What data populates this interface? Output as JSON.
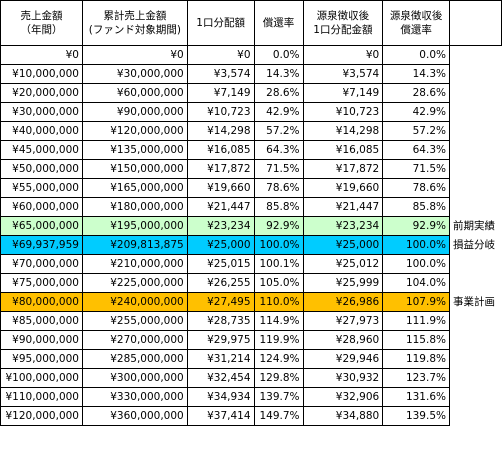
{
  "headers": [
    "売上金額\n（年間）",
    "累計売上金額\n(ファンド対象期間)",
    "1口分配額",
    "償還率",
    "源泉徴収後\n1口分配金額",
    "源泉徴収後\n償還率"
  ],
  "rows": [
    {
      "cells": [
        "¥0",
        "¥0",
        "¥0",
        "0.0%",
        "¥0",
        "0.0%"
      ],
      "note": "",
      "hl": ""
    },
    {
      "cells": [
        "¥10,000,000",
        "¥30,000,000",
        "¥3,574",
        "14.3%",
        "¥3,574",
        "14.3%"
      ],
      "note": "",
      "hl": ""
    },
    {
      "cells": [
        "¥20,000,000",
        "¥60,000,000",
        "¥7,149",
        "28.6%",
        "¥7,149",
        "28.6%"
      ],
      "note": "",
      "hl": ""
    },
    {
      "cells": [
        "¥30,000,000",
        "¥90,000,000",
        "¥10,723",
        "42.9%",
        "¥10,723",
        "42.9%"
      ],
      "note": "",
      "hl": ""
    },
    {
      "cells": [
        "¥40,000,000",
        "¥120,000,000",
        "¥14,298",
        "57.2%",
        "¥14,298",
        "57.2%"
      ],
      "note": "",
      "hl": ""
    },
    {
      "cells": [
        "¥45,000,000",
        "¥135,000,000",
        "¥16,085",
        "64.3%",
        "¥16,085",
        "64.3%"
      ],
      "note": "",
      "hl": ""
    },
    {
      "cells": [
        "¥50,000,000",
        "¥150,000,000",
        "¥17,872",
        "71.5%",
        "¥17,872",
        "71.5%"
      ],
      "note": "",
      "hl": ""
    },
    {
      "cells": [
        "¥55,000,000",
        "¥165,000,000",
        "¥19,660",
        "78.6%",
        "¥19,660",
        "78.6%"
      ],
      "note": "",
      "hl": ""
    },
    {
      "cells": [
        "¥60,000,000",
        "¥180,000,000",
        "¥21,447",
        "85.8%",
        "¥21,447",
        "85.8%"
      ],
      "note": "",
      "hl": ""
    },
    {
      "cells": [
        "¥65,000,000",
        "¥195,000,000",
        "¥23,234",
        "92.9%",
        "¥23,234",
        "92.9%"
      ],
      "note": "前期実績",
      "hl": "green"
    },
    {
      "cells": [
        "¥69,937,959",
        "¥209,813,875",
        "¥25,000",
        "100.0%",
        "¥25,000",
        "100.0%"
      ],
      "note": "損益分岐",
      "hl": "cyan"
    },
    {
      "cells": [
        "¥70,000,000",
        "¥210,000,000",
        "¥25,015",
        "100.1%",
        "¥25,012",
        "100.0%"
      ],
      "note": "",
      "hl": ""
    },
    {
      "cells": [
        "¥75,000,000",
        "¥225,000,000",
        "¥26,255",
        "105.0%",
        "¥25,999",
        "104.0%"
      ],
      "note": "",
      "hl": ""
    },
    {
      "cells": [
        "¥80,000,000",
        "¥240,000,000",
        "¥27,495",
        "110.0%",
        "¥26,986",
        "107.9%"
      ],
      "note": "事業計画",
      "hl": "orange"
    },
    {
      "cells": [
        "¥85,000,000",
        "¥255,000,000",
        "¥28,735",
        "114.9%",
        "¥27,973",
        "111.9%"
      ],
      "note": "",
      "hl": ""
    },
    {
      "cells": [
        "¥90,000,000",
        "¥270,000,000",
        "¥29,975",
        "119.9%",
        "¥28,960",
        "115.8%"
      ],
      "note": "",
      "hl": ""
    },
    {
      "cells": [
        "¥95,000,000",
        "¥285,000,000",
        "¥31,214",
        "124.9%",
        "¥29,946",
        "119.8%"
      ],
      "note": "",
      "hl": ""
    },
    {
      "cells": [
        "¥100,000,000",
        "¥300,000,000",
        "¥32,454",
        "129.8%",
        "¥30,932",
        "123.7%"
      ],
      "note": "",
      "hl": ""
    },
    {
      "cells": [
        "¥110,000,000",
        "¥330,000,000",
        "¥34,934",
        "139.7%",
        "¥32,906",
        "131.6%"
      ],
      "note": "",
      "hl": ""
    },
    {
      "cells": [
        "¥120,000,000",
        "¥360,000,000",
        "¥37,414",
        "149.7%",
        "¥34,880",
        "139.5%"
      ],
      "note": "",
      "hl": ""
    }
  ]
}
